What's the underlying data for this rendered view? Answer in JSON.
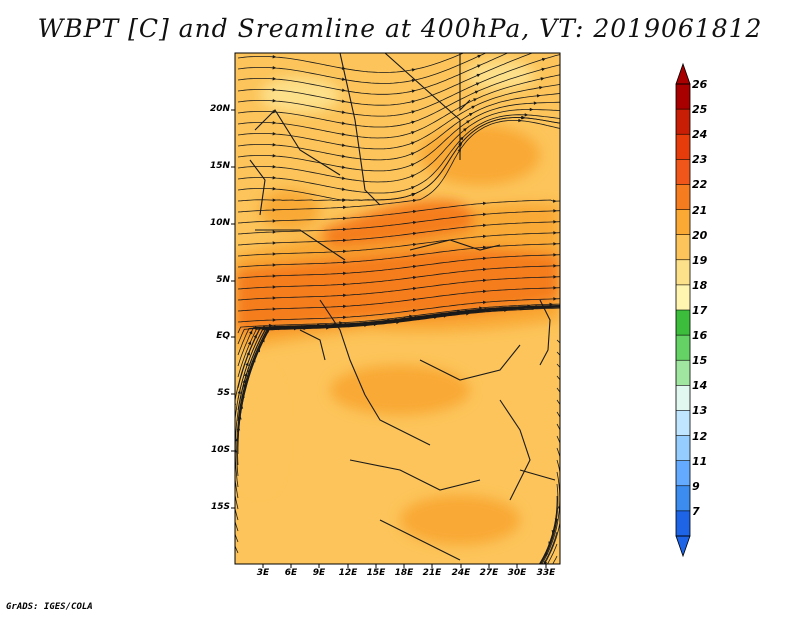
{
  "header": {
    "title": "WBPT [C] and Sreamline at 400hPa, VT: 2019061812"
  },
  "footer": {
    "credit": "GrADS: IGES/COLA"
  },
  "map": {
    "lat_labels": [
      "20N",
      "15N",
      "10N",
      "5N",
      "EQ",
      "5S",
      "10S",
      "15S"
    ],
    "lon_labels": [
      "3E",
      "6E",
      "9E",
      "12E",
      "15E",
      "18E",
      "21E",
      "24E",
      "27E",
      "30E",
      "33E"
    ],
    "field_colors": {
      "level_19_20": "#fde08a",
      "level_20_21": "#fcc45a",
      "level_21_22": "#f9a934",
      "level_22_23": "#f57d1f"
    },
    "streamline_color": "#1a1a1a",
    "border_color": "#1a1a1a"
  },
  "colorbar": {
    "labels": [
      "26",
      "25",
      "24",
      "23",
      "22",
      "21",
      "20",
      "19",
      "18",
      "17",
      "16",
      "15",
      "14",
      "13",
      "12",
      "11",
      "9",
      "7"
    ],
    "colors": [
      "#a80000",
      "#c81e05",
      "#e63c0c",
      "#f0561a",
      "#f57d1f",
      "#f9a934",
      "#fcc45a",
      "#fde08a",
      "#fff4b0",
      "#3cbe3c",
      "#64d264",
      "#a0e6a0",
      "#e0f8f0",
      "#c0e6ff",
      "#96cdff",
      "#64aaff",
      "#3c8cf0",
      "#1e64e6"
    ]
  }
}
